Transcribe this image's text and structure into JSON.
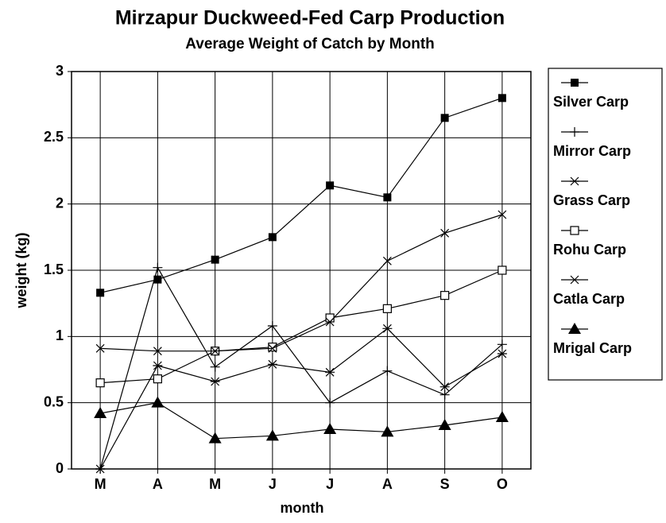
{
  "chart_data": {
    "type": "line",
    "title": "Mirzapur Duckweed-Fed Carp Production",
    "subtitle": "Average Weight of Catch by Month",
    "x_label": "month",
    "y_label": "weight (kg)",
    "categories": [
      "M",
      "A",
      "M",
      "J",
      "J",
      "A",
      "S",
      "O"
    ],
    "ylim": [
      0,
      3
    ],
    "yticks": [
      0,
      0.5,
      1,
      1.5,
      2,
      2.5,
      3
    ],
    "grid": true,
    "legend": "right",
    "series": [
      {
        "name": "Silver Carp",
        "color": "#000000",
        "marker": "square-filled",
        "values": [
          1.33,
          1.43,
          1.58,
          1.75,
          2.14,
          2.05,
          2.65,
          2.8
        ]
      },
      {
        "name": "Mirror Carp",
        "color": "#000000",
        "marker": "plus",
        "values": [
          0.0,
          1.52,
          0.77,
          1.08,
          0.5,
          0.74,
          0.56,
          0.94
        ]
      },
      {
        "name": "Grass Carp",
        "color": "#000000",
        "marker": "asterisk",
        "values": [
          0.0,
          0.78,
          0.66,
          0.79,
          0.73,
          1.06,
          0.62,
          0.87
        ]
      },
      {
        "name": "Rohu Carp",
        "color": "#000000",
        "marker": "square-open",
        "values": [
          0.65,
          0.68,
          0.89,
          0.92,
          1.14,
          1.21,
          1.31,
          1.5
        ]
      },
      {
        "name": "Catla Carp",
        "color": "#000000",
        "marker": "cross",
        "values": [
          0.91,
          0.89,
          0.89,
          0.91,
          1.11,
          1.57,
          1.78,
          1.92
        ]
      },
      {
        "name": "Mrigal Carp",
        "color": "#000000",
        "marker": "triangle-filled",
        "values": [
          0.42,
          0.5,
          0.23,
          0.25,
          0.3,
          0.28,
          0.33,
          0.39
        ]
      }
    ]
  }
}
